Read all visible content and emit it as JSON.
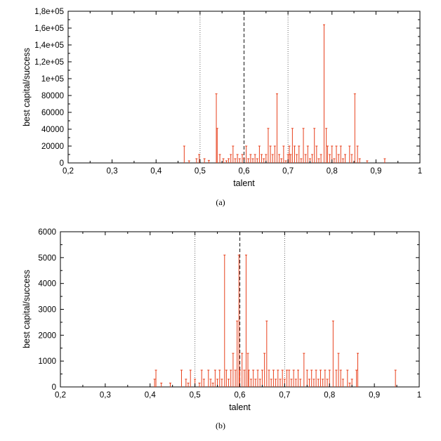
{
  "chart_data": [
    {
      "type": "bar",
      "caption": "(a)",
      "xlabel": "talent",
      "ylabel": "best capital/success",
      "xlim": [
        0.2,
        1.0
      ],
      "ylim": [
        0,
        180000
      ],
      "xticks": [
        0.2,
        0.3,
        0.4,
        0.5,
        0.6,
        0.7,
        0.8,
        0.9,
        1.0
      ],
      "xtick_labels": [
        "0,2",
        "0,3",
        "0,4",
        "0,5",
        "0,6",
        "0,7",
        "0,8",
        "0,9",
        "1"
      ],
      "yticks": [
        0,
        20000,
        40000,
        60000,
        80000,
        100000,
        120000,
        140000,
        160000,
        180000
      ],
      "ytick_labels": [
        "0",
        "20000",
        "40000",
        "60000",
        "80000",
        "1e+05",
        "1,2e+05",
        "1,4e+05",
        "1,6e+05",
        "1,8e+05"
      ],
      "vlines": [
        {
          "x": 0.5,
          "style": "dotted"
        },
        {
          "x": 0.6,
          "style": "dashed"
        },
        {
          "x": 0.7,
          "style": "dotted"
        }
      ],
      "grid": false,
      "color": "#e8401c",
      "x": [
        0.464,
        0.475,
        0.492,
        0.498,
        0.51,
        0.52,
        0.537,
        0.539,
        0.545,
        0.553,
        0.56,
        0.565,
        0.57,
        0.575,
        0.58,
        0.585,
        0.59,
        0.596,
        0.6,
        0.605,
        0.61,
        0.615,
        0.62,
        0.625,
        0.63,
        0.635,
        0.64,
        0.645,
        0.65,
        0.655,
        0.66,
        0.665,
        0.67,
        0.675,
        0.68,
        0.685,
        0.69,
        0.695,
        0.7,
        0.703,
        0.706,
        0.71,
        0.715,
        0.72,
        0.725,
        0.73,
        0.735,
        0.74,
        0.745,
        0.75,
        0.755,
        0.76,
        0.765,
        0.77,
        0.775,
        0.782,
        0.787,
        0.79,
        0.795,
        0.8,
        0.805,
        0.81,
        0.815,
        0.82,
        0.825,
        0.83,
        0.84,
        0.845,
        0.852,
        0.858,
        0.863,
        0.88,
        0.92
      ],
      "values": [
        20000,
        2500,
        5000,
        10000,
        5000,
        3000,
        82000,
        41000,
        10000,
        5000,
        2500,
        5000,
        10000,
        20000,
        5000,
        10000,
        5000,
        10000,
        5000,
        20000,
        5000,
        10000,
        5000,
        10000,
        5000,
        20000,
        10000,
        5000,
        10000,
        41000,
        20000,
        10000,
        20000,
        82000,
        10000,
        5000,
        20000,
        2500,
        10000,
        20000,
        10000,
        41000,
        20000,
        10000,
        20000,
        5000,
        41000,
        10000,
        20000,
        5000,
        10000,
        41000,
        20000,
        5000,
        10000,
        164000,
        41000,
        20000,
        10000,
        20000,
        5000,
        20000,
        10000,
        20000,
        5000,
        10000,
        20000,
        10000,
        82000,
        20000,
        5000,
        2500,
        5000
      ]
    },
    {
      "type": "bar",
      "caption": "(b)",
      "xlabel": "talent",
      "ylabel": "best capital/success",
      "xlim": [
        0.2,
        1.0
      ],
      "ylim": [
        0,
        6000
      ],
      "xticks": [
        0.2,
        0.3,
        0.4,
        0.5,
        0.6,
        0.7,
        0.8,
        0.9,
        1.0
      ],
      "xtick_labels": [
        "0,2",
        "0,3",
        "0,4",
        "0,5",
        "0,6",
        "0,7",
        "0,8",
        "0,9",
        "1"
      ],
      "yticks": [
        0,
        1000,
        2000,
        3000,
        4000,
        5000,
        6000
      ],
      "ytick_labels": [
        "0",
        "1000",
        "2000",
        "3000",
        "4000",
        "5000",
        "6000"
      ],
      "vlines": [
        {
          "x": 0.5,
          "style": "dotted"
        },
        {
          "x": 0.6,
          "style": "dashed"
        },
        {
          "x": 0.7,
          "style": "dotted"
        }
      ],
      "grid": false,
      "color": "#e8401c",
      "x": [
        0.41,
        0.413,
        0.425,
        0.445,
        0.47,
        0.48,
        0.485,
        0.49,
        0.5,
        0.51,
        0.515,
        0.52,
        0.53,
        0.535,
        0.54,
        0.545,
        0.55,
        0.555,
        0.56,
        0.566,
        0.57,
        0.575,
        0.58,
        0.585,
        0.59,
        0.594,
        0.598,
        0.6,
        0.605,
        0.61,
        0.614,
        0.618,
        0.62,
        0.625,
        0.63,
        0.635,
        0.64,
        0.645,
        0.65,
        0.655,
        0.66,
        0.665,
        0.67,
        0.675,
        0.68,
        0.685,
        0.69,
        0.695,
        0.7,
        0.705,
        0.71,
        0.715,
        0.72,
        0.725,
        0.73,
        0.735,
        0.743,
        0.75,
        0.755,
        0.76,
        0.765,
        0.77,
        0.775,
        0.78,
        0.785,
        0.79,
        0.795,
        0.8,
        0.808,
        0.815,
        0.82,
        0.825,
        0.83,
        0.84,
        0.845,
        0.85,
        0.86,
        0.863,
        0.947
      ],
      "values": [
        300,
        650,
        150,
        150,
        650,
        300,
        150,
        650,
        300,
        150,
        650,
        300,
        650,
        300,
        150,
        650,
        300,
        650,
        300,
        5100,
        650,
        300,
        650,
        1300,
        650,
        2550,
        5100,
        650,
        1300,
        650,
        5100,
        1300,
        650,
        300,
        650,
        300,
        650,
        300,
        650,
        1300,
        2550,
        650,
        300,
        650,
        300,
        650,
        300,
        650,
        300,
        650,
        650,
        300,
        650,
        300,
        650,
        300,
        1300,
        650,
        300,
        650,
        300,
        650,
        300,
        650,
        300,
        650,
        300,
        650,
        2550,
        650,
        1300,
        650,
        300,
        650,
        150,
        300,
        650,
        1300,
        650
      ]
    }
  ]
}
